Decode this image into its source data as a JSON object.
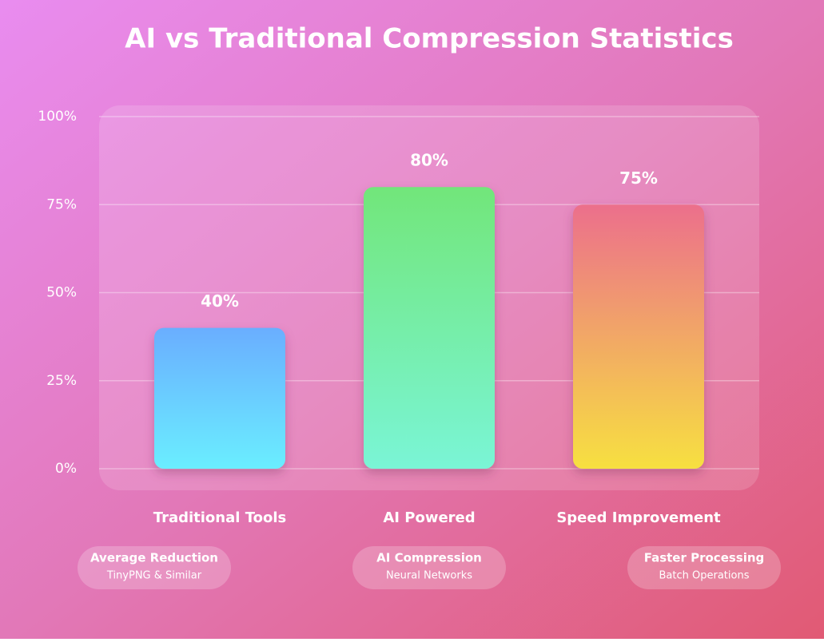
{
  "chart_data": {
    "type": "bar",
    "title": "AI vs Traditional Compression Statistics",
    "categories": [
      "Traditional Tools",
      "AI Powered",
      "Speed Improvement"
    ],
    "values": [
      40,
      80,
      75
    ],
    "value_labels": [
      "40%",
      "80%",
      "75%"
    ],
    "colors": [
      [
        "#6aaeff",
        "#6aeeff"
      ],
      [
        "#72e67a",
        "#7af5d6"
      ],
      [
        "#ec6f8c",
        "#f7e040"
      ]
    ],
    "ylim": [
      0,
      100
    ],
    "yticks": [
      {
        "value": 0,
        "label": "0%"
      },
      {
        "value": 25,
        "label": "25%"
      },
      {
        "value": 50,
        "label": "50%"
      },
      {
        "value": 75,
        "label": "75%"
      },
      {
        "value": 100,
        "label": "100%"
      }
    ],
    "grid": true,
    "annotations": [
      {
        "title": "Average Reduction",
        "subtitle": "TinyPNG & Similar"
      },
      {
        "title": "AI Compression",
        "subtitle": "Neural Networks"
      },
      {
        "title": "Faster Processing",
        "subtitle": "Batch Operations"
      }
    ]
  }
}
